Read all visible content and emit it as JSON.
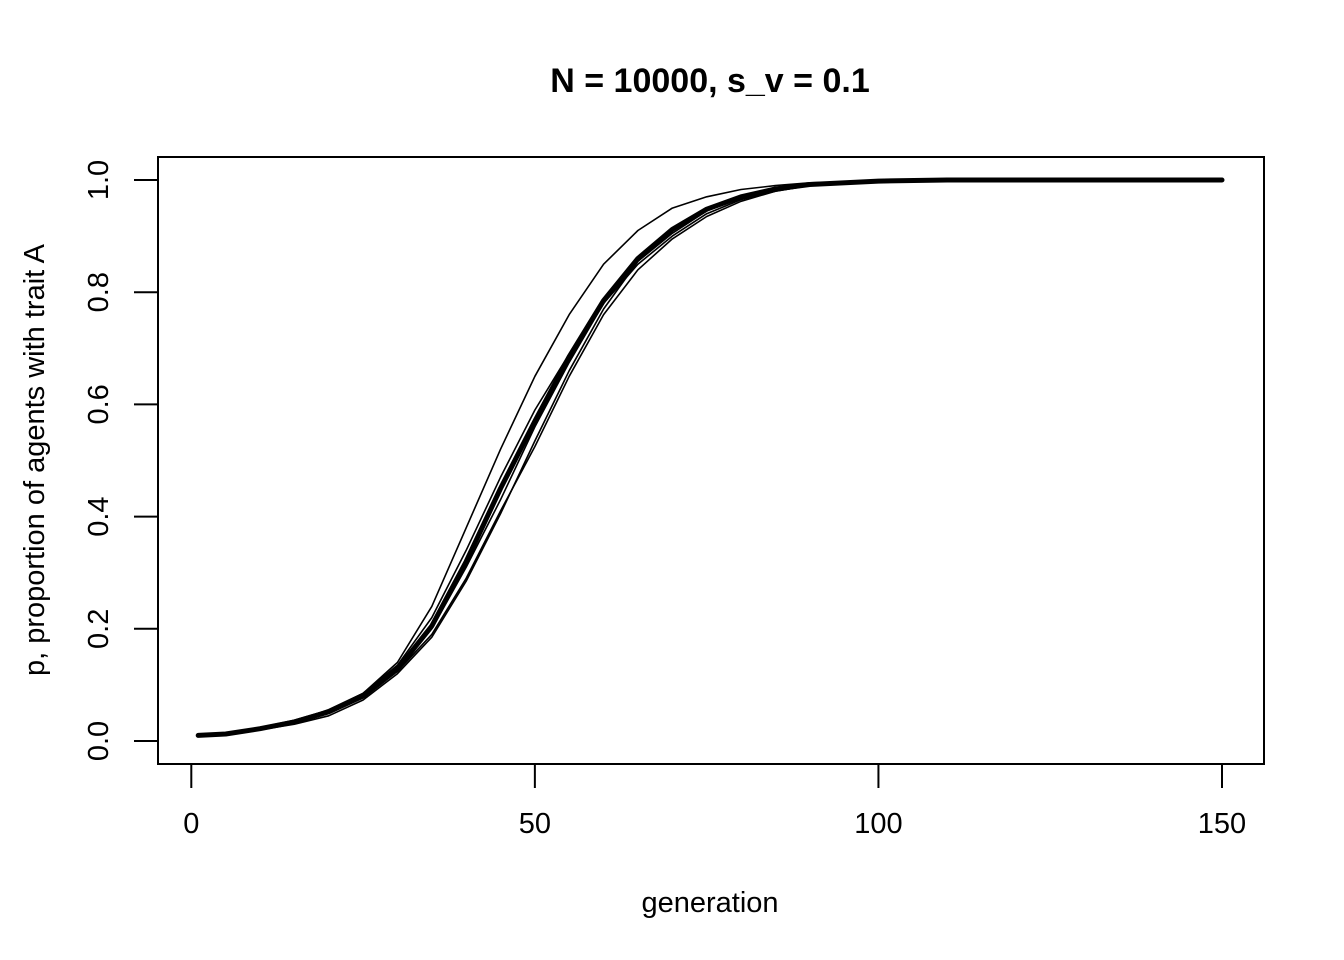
{
  "chart_data": {
    "type": "line",
    "title": "N = 10000, s_v = 0.1",
    "xlabel": "generation",
    "ylabel": "p, proportion of agents with trait A",
    "xlim": [
      1,
      150
    ],
    "ylim": [
      0,
      1
    ],
    "xticks": [
      0,
      50,
      100,
      150
    ],
    "yticks": [
      0.0,
      0.2,
      0.4,
      0.6,
      0.8,
      1.0
    ],
    "xtick_labels": [
      "0",
      "50",
      "100",
      "150"
    ],
    "ytick_labels": [
      "0.0",
      "0.2",
      "0.4",
      "0.6",
      "0.8",
      "1.0"
    ],
    "grid": false,
    "legend": "none",
    "runs": [
      {
        "x": [
          1,
          5,
          10,
          15,
          20,
          25,
          30,
          35,
          40,
          45,
          50,
          55,
          60,
          65,
          70,
          75,
          80,
          85,
          90,
          100,
          110,
          125,
          150
        ],
        "y": [
          0.01,
          0.013,
          0.024,
          0.037,
          0.055,
          0.085,
          0.135,
          0.22,
          0.34,
          0.47,
          0.59,
          0.69,
          0.78,
          0.85,
          0.9,
          0.94,
          0.965,
          0.98,
          0.99,
          0.997,
          0.999,
          1.0,
          1.0
        ]
      },
      {
        "x": [
          1,
          5,
          10,
          15,
          20,
          25,
          30,
          35,
          40,
          45,
          50,
          55,
          60,
          65,
          70,
          75,
          80,
          85,
          90,
          100,
          110,
          125,
          150
        ],
        "y": [
          0.01,
          0.012,
          0.02,
          0.03,
          0.045,
          0.073,
          0.12,
          0.185,
          0.285,
          0.405,
          0.535,
          0.66,
          0.77,
          0.855,
          0.91,
          0.947,
          0.97,
          0.985,
          0.993,
          0.998,
          1.0,
          1.0,
          1.0
        ]
      },
      {
        "x": [
          1,
          5,
          10,
          15,
          20,
          25,
          30,
          35,
          40,
          45,
          50,
          55,
          60,
          65,
          70,
          75,
          80,
          85,
          90,
          100,
          110,
          125,
          150
        ],
        "y": [
          0.01,
          0.013,
          0.022,
          0.034,
          0.052,
          0.078,
          0.124,
          0.19,
          0.29,
          0.41,
          0.525,
          0.65,
          0.76,
          0.84,
          0.895,
          0.935,
          0.962,
          0.98,
          0.99,
          0.997,
          1.0,
          1.0,
          1.0
        ]
      },
      {
        "x": [
          1,
          5,
          10,
          15,
          20,
          25,
          30,
          35,
          40,
          45,
          50,
          55,
          60,
          65,
          70,
          75,
          80,
          85,
          90,
          100,
          110,
          125,
          150
        ],
        "y": [
          0.01,
          0.012,
          0.021,
          0.033,
          0.05,
          0.08,
          0.125,
          0.2,
          0.31,
          0.43,
          0.56,
          0.675,
          0.78,
          0.855,
          0.905,
          0.945,
          0.968,
          0.983,
          0.991,
          0.997,
          1.0,
          1.0,
          1.0
        ]
      },
      {
        "x": [
          1,
          5,
          10,
          15,
          20,
          25,
          30,
          35,
          40,
          45,
          50,
          55,
          60,
          65,
          70,
          75,
          80,
          85,
          90,
          100,
          110,
          125,
          150
        ],
        "y": [
          0.01,
          0.013,
          0.022,
          0.035,
          0.056,
          0.085,
          0.14,
          0.24,
          0.38,
          0.52,
          0.65,
          0.76,
          0.85,
          0.91,
          0.95,
          0.97,
          0.983,
          0.99,
          0.995,
          0.998,
          1.0,
          1.0,
          1.0
        ]
      }
    ],
    "mean": {
      "x": [
        1,
        5,
        10,
        15,
        20,
        25,
        30,
        35,
        40,
        45,
        50,
        55,
        60,
        65,
        70,
        75,
        80,
        85,
        90,
        100,
        110,
        125,
        150
      ],
      "y": [
        0.01,
        0.0125,
        0.022,
        0.034,
        0.052,
        0.08,
        0.128,
        0.205,
        0.32,
        0.45,
        0.57,
        0.685,
        0.785,
        0.86,
        0.912,
        0.948,
        0.97,
        0.984,
        0.992,
        0.998,
        1.0,
        1.0,
        1.0
      ]
    }
  }
}
